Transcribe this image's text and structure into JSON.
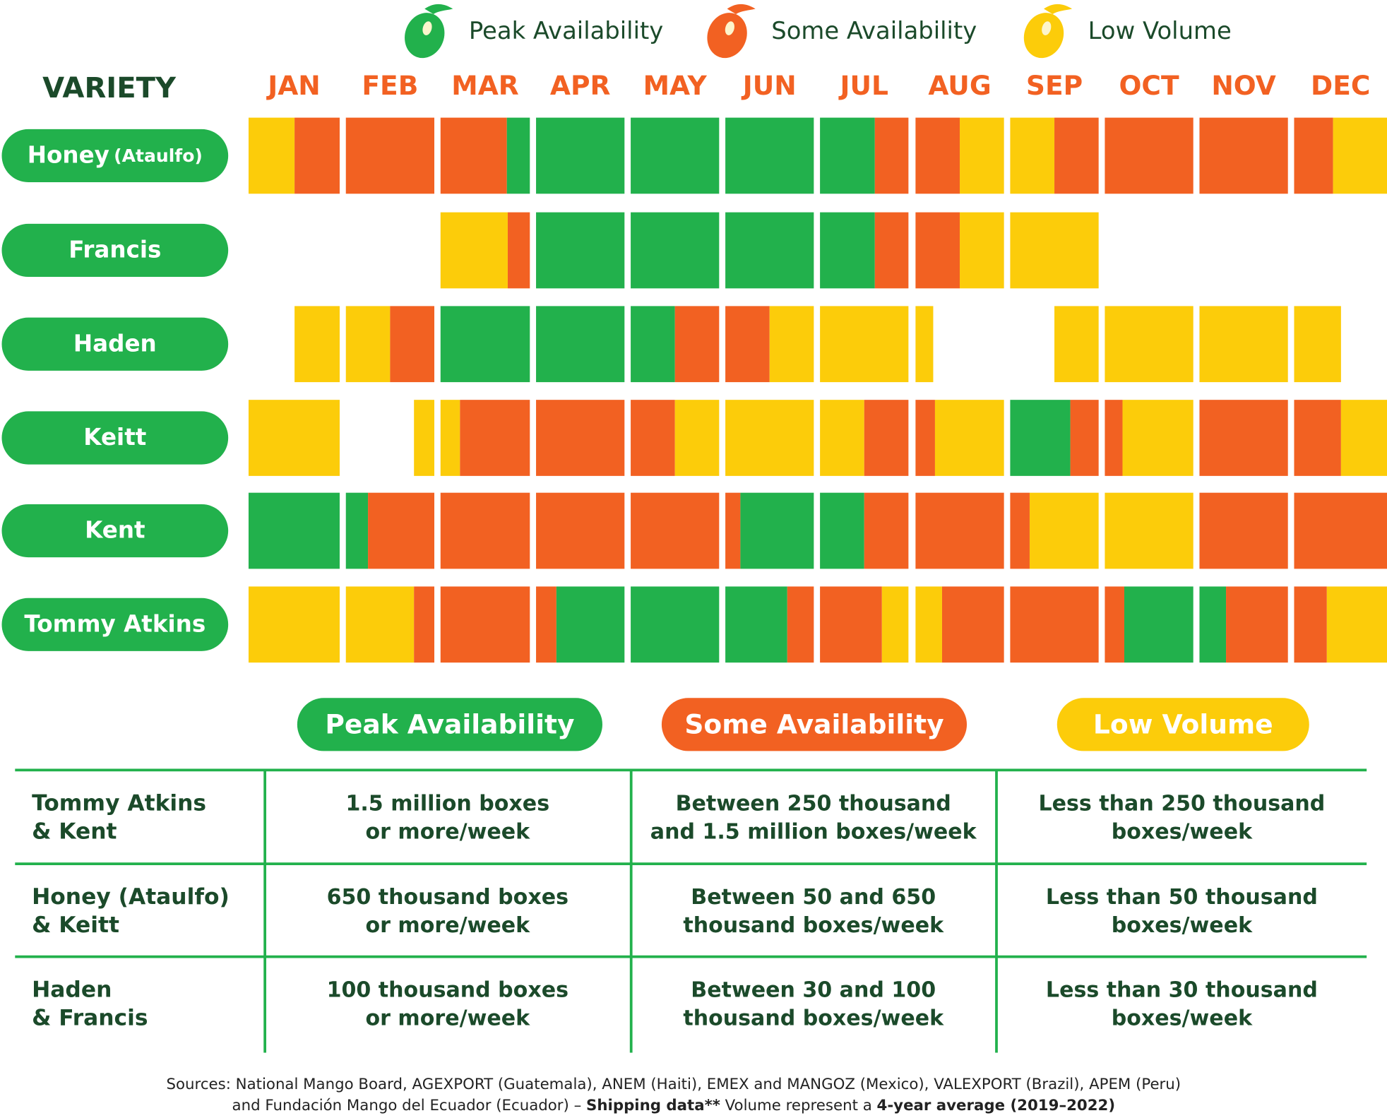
{
  "colors": {
    "peak": "#22b14c",
    "some": "#f26122",
    "low": "#fccc0a",
    "text": "#1b4a2a"
  },
  "legend": [
    {
      "key": "peak",
      "label": "Peak Availability",
      "icon": "mango-icon"
    },
    {
      "key": "some",
      "label": "Some Availability",
      "icon": "mango-icon"
    },
    {
      "key": "low",
      "label": "Low Volume",
      "icon": "mango-icon"
    }
  ],
  "chart_data": {
    "type": "heatmap",
    "row_header": "VARIETY",
    "categories": [
      "JAN",
      "FEB",
      "MAR",
      "APR",
      "MAY",
      "JUN",
      "JUL",
      "AUG",
      "SEP",
      "OCT",
      "NOV",
      "DEC"
    ],
    "legend": [
      "Peak Availability",
      "Some Availability",
      "Low Volume"
    ],
    "series": [
      {
        "name": "Honey",
        "suffix": "(Ataulfo)",
        "months": [
          [
            [
              "low",
              0,
              0.5
            ],
            [
              "some",
              0.5,
              1
            ]
          ],
          [
            [
              "some",
              0,
              1
            ]
          ],
          [
            [
              "some",
              0,
              0.74
            ],
            [
              "peak",
              0.74,
              1
            ]
          ],
          [
            [
              "peak",
              0,
              1
            ]
          ],
          [
            [
              "peak",
              0,
              1
            ]
          ],
          [
            [
              "peak",
              0,
              1
            ]
          ],
          [
            [
              "peak",
              0,
              0.62
            ],
            [
              "some",
              0.62,
              1
            ]
          ],
          [
            [
              "some",
              0,
              0.5
            ],
            [
              "low",
              0.5,
              1
            ]
          ],
          [
            [
              "low",
              0,
              0.5
            ],
            [
              "some",
              0.5,
              1
            ]
          ],
          [
            [
              "some",
              0,
              1
            ]
          ],
          [
            [
              "some",
              0,
              1
            ]
          ],
          [
            [
              "some",
              0,
              0.42
            ],
            [
              "low",
              0.42,
              1
            ]
          ]
        ]
      },
      {
        "name": "Francis",
        "suffix": "",
        "months": [
          [],
          [],
          [
            [
              "low",
              0,
              0.75
            ],
            [
              "some",
              0.75,
              1
            ]
          ],
          [
            [
              "peak",
              0,
              1
            ]
          ],
          [
            [
              "peak",
              0,
              1
            ]
          ],
          [
            [
              "peak",
              0,
              1
            ]
          ],
          [
            [
              "peak",
              0,
              0.62
            ],
            [
              "some",
              0.62,
              1
            ]
          ],
          [
            [
              "some",
              0,
              0.5
            ],
            [
              "low",
              0.5,
              1
            ]
          ],
          [
            [
              "low",
              0,
              1
            ]
          ],
          [],
          [],
          []
        ]
      },
      {
        "name": "Haden",
        "suffix": "",
        "months": [
          [
            [
              "low",
              0.5,
              1
            ]
          ],
          [
            [
              "low",
              0,
              0.5
            ],
            [
              "some",
              0.5,
              1
            ]
          ],
          [
            [
              "peak",
              0,
              1
            ]
          ],
          [
            [
              "peak",
              0,
              1
            ]
          ],
          [
            [
              "peak",
              0,
              0.5
            ],
            [
              "some",
              0.5,
              1
            ]
          ],
          [
            [
              "some",
              0,
              0.5
            ],
            [
              "low",
              0.5,
              1
            ]
          ],
          [
            [
              "low",
              0,
              1
            ]
          ],
          [
            [
              "low",
              0,
              0.2
            ]
          ],
          [
            [
              "low",
              0.5,
              1
            ]
          ],
          [
            [
              "low",
              0,
              1
            ]
          ],
          [
            [
              "low",
              0,
              1
            ]
          ],
          [
            [
              "low",
              0,
              0.5
            ]
          ]
        ]
      },
      {
        "name": "Keitt",
        "suffix": "",
        "months": [
          [
            [
              "low",
              0,
              1
            ]
          ],
          [
            [
              "low",
              0.77,
              1
            ]
          ],
          [
            [
              "low",
              0,
              0.22
            ],
            [
              "some",
              0.22,
              1
            ]
          ],
          [
            [
              "some",
              0,
              1
            ]
          ],
          [
            [
              "some",
              0,
              0.5
            ],
            [
              "low",
              0.5,
              1
            ]
          ],
          [
            [
              "low",
              0,
              1
            ]
          ],
          [
            [
              "low",
              0,
              0.5
            ],
            [
              "some",
              0.5,
              1
            ]
          ],
          [
            [
              "some",
              0,
              0.22
            ],
            [
              "low",
              0.22,
              1
            ]
          ],
          [
            [
              "peak",
              0,
              0.68
            ],
            [
              "some",
              0.68,
              1
            ]
          ],
          [
            [
              "some",
              0,
              0.2
            ],
            [
              "low",
              0.2,
              1
            ]
          ],
          [
            [
              "some",
              0,
              1
            ]
          ],
          [
            [
              "some",
              0,
              0.5
            ],
            [
              "low",
              0.5,
              1
            ]
          ]
        ]
      },
      {
        "name": "Kent",
        "suffix": "",
        "months": [
          [
            [
              "peak",
              0,
              1
            ]
          ],
          [
            [
              "peak",
              0,
              0.25
            ],
            [
              "some",
              0.25,
              1
            ]
          ],
          [
            [
              "some",
              0,
              1
            ]
          ],
          [
            [
              "some",
              0,
              1
            ]
          ],
          [
            [
              "some",
              0,
              1
            ]
          ],
          [
            [
              "some",
              0,
              0.17
            ],
            [
              "peak",
              0.17,
              1
            ]
          ],
          [
            [
              "peak",
              0,
              0.5
            ],
            [
              "some",
              0.5,
              1
            ]
          ],
          [
            [
              "some",
              0,
              1
            ]
          ],
          [
            [
              "some",
              0,
              0.22
            ],
            [
              "low",
              0.22,
              1
            ]
          ],
          [
            [
              "low",
              0,
              1
            ]
          ],
          [
            [
              "some",
              0,
              1
            ]
          ],
          [
            [
              "some",
              0,
              1
            ]
          ]
        ]
      },
      {
        "name": "Tommy Atkins",
        "suffix": "",
        "months": [
          [
            [
              "low",
              0,
              1
            ]
          ],
          [
            [
              "low",
              0,
              0.77
            ],
            [
              "some",
              0.77,
              1
            ]
          ],
          [
            [
              "some",
              0,
              1
            ]
          ],
          [
            [
              "some",
              0,
              0.23
            ],
            [
              "peak",
              0.23,
              1
            ]
          ],
          [
            [
              "peak",
              0,
              1
            ]
          ],
          [
            [
              "peak",
              0,
              0.7
            ],
            [
              "some",
              0.7,
              1
            ]
          ],
          [
            [
              "some",
              0,
              0.7
            ],
            [
              "low",
              0.7,
              1
            ]
          ],
          [
            [
              "low",
              0,
              0.3
            ],
            [
              "some",
              0.3,
              1
            ]
          ],
          [
            [
              "some",
              0,
              1
            ]
          ],
          [
            [
              "some",
              0,
              0.22
            ],
            [
              "peak",
              0.22,
              1
            ]
          ],
          [
            [
              "peak",
              0,
              0.3
            ],
            [
              "some",
              0.3,
              1
            ]
          ],
          [
            [
              "some",
              0,
              0.35
            ],
            [
              "low",
              0.35,
              1
            ]
          ]
        ]
      }
    ]
  },
  "table": {
    "headers": [
      "Peak Availability",
      "Some Availability",
      "Low Volume"
    ],
    "rows": [
      {
        "variety": "Tommy Atkins\n& Kent",
        "cells": [
          "1.5 million boxes\nor more/week",
          "Between 250 thousand\nand 1.5 million boxes/week",
          "Less than 250 thousand\nboxes/week"
        ]
      },
      {
        "variety": "Honey (Ataulfo)\n& Keitt",
        "cells": [
          "650 thousand boxes\nor more/week",
          "Between 50 and 650\nthousand boxes/week",
          "Less than 50 thousand\nboxes/week"
        ]
      },
      {
        "variety": "Haden\n& Francis",
        "cells": [
          "100 thousand boxes\nor more/week",
          "Between 30 and 100\nthousand boxes/week",
          "Less than 30 thousand\nboxes/week"
        ]
      }
    ]
  },
  "footer": {
    "line1": "Sources: National Mango Board, AGEXPORT (Guatemala), ANEM (Haiti), EMEX and MANGOZ (Mexico), VALEXPORT (Brazil), APEM (Peru)",
    "line2a": "and Fundación Mango del Ecuador (Ecuador) – ",
    "line2b": "Shipping data**",
    "line2c": " Volume represent a ",
    "line2d": "4-year average (2019–2022)"
  }
}
